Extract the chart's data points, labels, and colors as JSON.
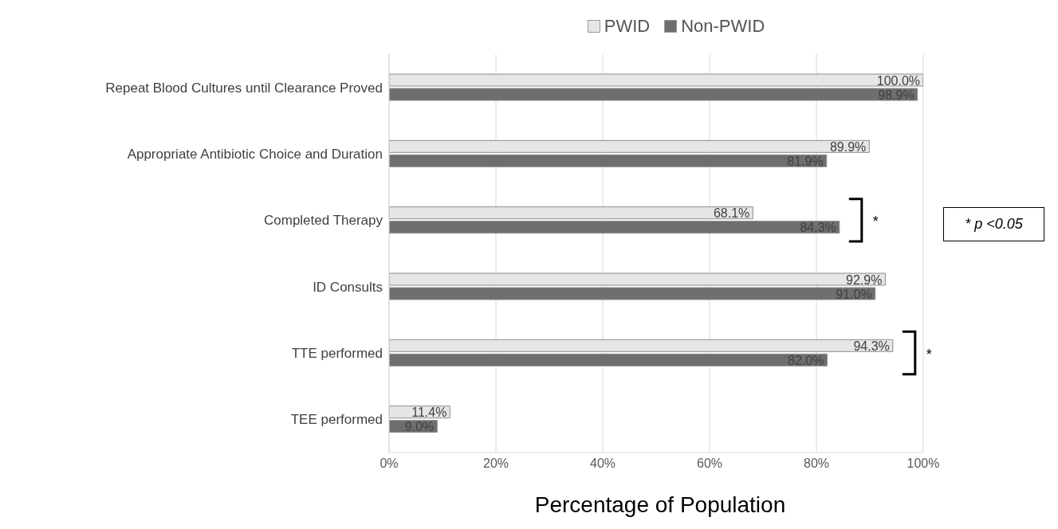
{
  "chart_data": {
    "type": "bar",
    "orientation": "horizontal",
    "xlabel": "Percentage of Population",
    "categories": [
      "Repeat Blood Cultures until Clearance Proved",
      "Appropriate Antibiotic Choice and Duration",
      "Completed Therapy",
      "ID Consults",
      "TTE performed",
      "TEE performed"
    ],
    "series": [
      {
        "name": "PWID",
        "color": "#e6e6e6",
        "values": [
          100.0,
          89.9,
          68.1,
          92.9,
          94.3,
          11.4
        ],
        "value_labels": [
          "100.0%",
          "89.9%",
          "68.1%",
          "92.9%",
          "94.3%",
          "11.4%"
        ]
      },
      {
        "name": "Non-PWID",
        "color": "#6e6e6e",
        "values": [
          98.9,
          81.9,
          84.3,
          91.0,
          82.0,
          9.0
        ],
        "value_labels": [
          "98.9%",
          "81.9%",
          "84.3%",
          "91.0%",
          "82.0%",
          "9.0%"
        ]
      }
    ],
    "xlim": [
      0,
      100
    ],
    "xticks": [
      {
        "value": 0,
        "label": "0%"
      },
      {
        "value": 20,
        "label": "20%"
      },
      {
        "value": 40,
        "label": "40%"
      },
      {
        "value": 60,
        "label": "60%"
      },
      {
        "value": 80,
        "label": "80%"
      },
      {
        "value": 100,
        "label": "100%"
      }
    ],
    "grid": "x",
    "legend": "top",
    "annotations": [
      "*",
      "*",
      "* p <0.05"
    ]
  }
}
